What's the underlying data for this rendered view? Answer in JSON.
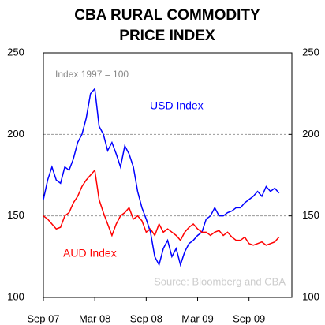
{
  "chart_data": {
    "type": "line",
    "title": [
      "CBA RURAL COMMODITY",
      "PRICE INDEX"
    ],
    "annotations": [
      "Index  1997 = 100",
      "Source: Bloomberg and CBA"
    ],
    "x": [
      0,
      0.5,
      1,
      1.5,
      2,
      2.5,
      3,
      3.5,
      4,
      4.5,
      5,
      5.5,
      6,
      6.5,
      7,
      7.5,
      8,
      8.5,
      9,
      9.5,
      10,
      10.5,
      11,
      11.5,
      12,
      12.5,
      13,
      13.5,
      14,
      14.5,
      15,
      15.5,
      16,
      16.5,
      17,
      17.5,
      18,
      18.5,
      19,
      19.5,
      20,
      20.5,
      21,
      21.5,
      22,
      22.5,
      23,
      23.5,
      24,
      24.5,
      25,
      25.5,
      26,
      26.5,
      27,
      27.5
    ],
    "series": [
      {
        "name": "USD Index",
        "color": "#0000ff",
        "values": [
          160,
          172,
          180,
          172,
          170,
          180,
          178,
          185,
          195,
          200,
          210,
          225,
          228,
          205,
          200,
          190,
          195,
          188,
          180,
          193,
          188,
          180,
          165,
          155,
          148,
          140,
          125,
          120,
          130,
          135,
          125,
          130,
          120,
          128,
          133,
          135,
          138,
          140,
          148,
          150,
          155,
          150,
          150,
          152,
          153,
          155,
          155,
          158,
          160,
          162,
          165,
          162,
          168,
          165,
          167,
          164
        ]
      },
      {
        "name": "AUD Index",
        "color": "#ff0000",
        "values": [
          150,
          148,
          145,
          142,
          143,
          150,
          152,
          158,
          162,
          168,
          172,
          175,
          178,
          160,
          152,
          145,
          138,
          145,
          150,
          152,
          155,
          148,
          150,
          147,
          140,
          142,
          138,
          145,
          140,
          142,
          140,
          138,
          135,
          140,
          143,
          145,
          142,
          140,
          140,
          138,
          140,
          141,
          138,
          140,
          137,
          135,
          135,
          137,
          133,
          132,
          133,
          134,
          132,
          133,
          134,
          137
        ]
      }
    ],
    "xlim": [
      0,
      29
    ],
    "xticks": [
      {
        "value": 0,
        "label": "Sep 07"
      },
      {
        "value": 6,
        "label": "Mar 08"
      },
      {
        "value": 12,
        "label": "Sep 08"
      },
      {
        "value": 18,
        "label": "Mar 09"
      },
      {
        "value": 24,
        "label": "Sep 09"
      }
    ],
    "ylim": [
      100,
      250
    ],
    "yticks": [
      100,
      150,
      200,
      250
    ],
    "y2lim": [
      100,
      250
    ],
    "y2ticks": [
      100,
      150,
      200,
      250
    ],
    "grid": true
  }
}
